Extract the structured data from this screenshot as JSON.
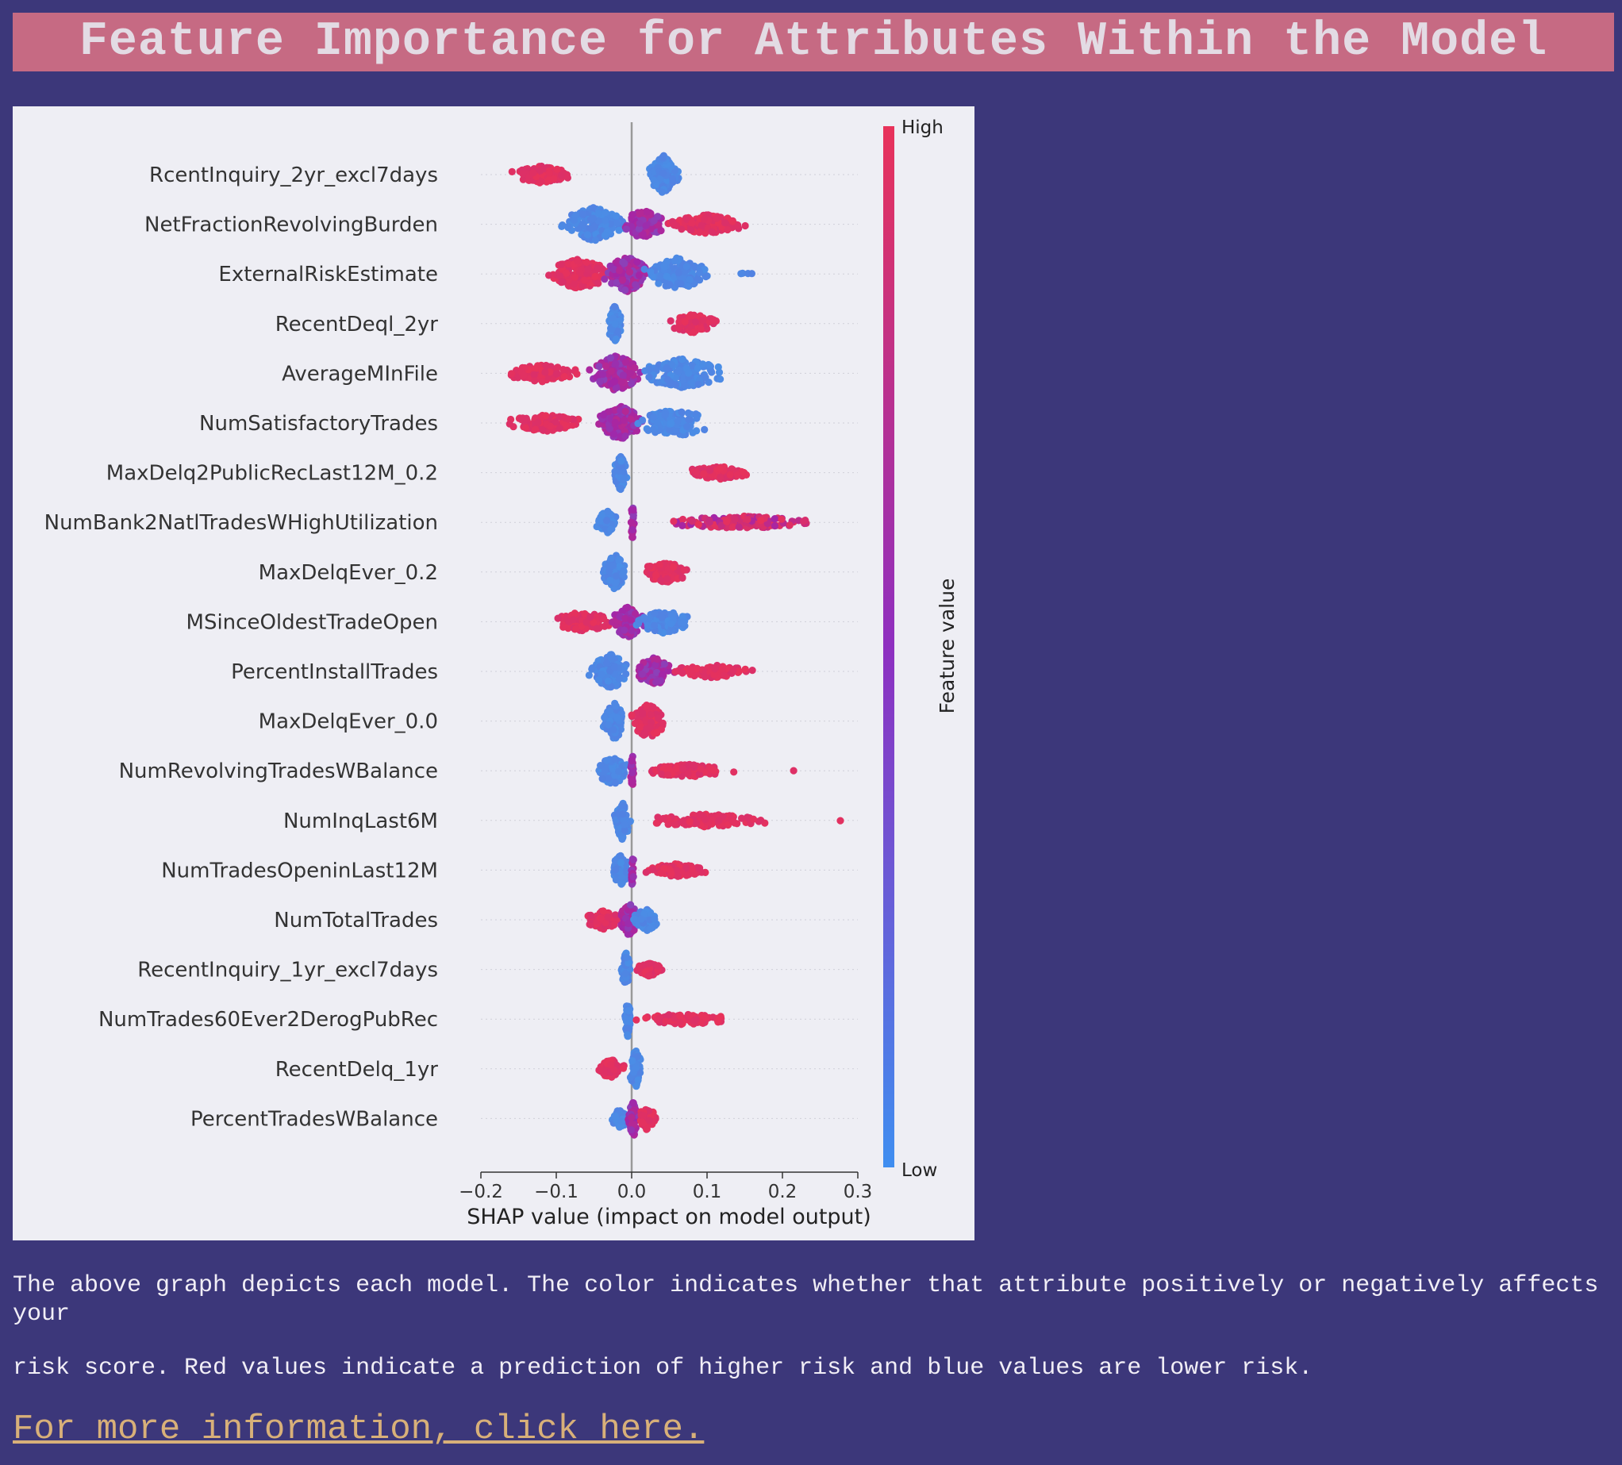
{
  "page": {
    "title": "Feature Importance for Attributes Within the Model",
    "description_line1": "The above graph depicts each model. The color indicates whether that attribute positively or negatively affects your",
    "description_line2": "risk score. Red values indicate a prediction of higher risk and blue values are lower risk.",
    "link_text": "For more information, click here."
  },
  "colors": {
    "background": "#3c377a",
    "title_bar": "#c66a83",
    "title_text": "#e3dbe4",
    "plot_background": "#eeeef4",
    "high": "#e8325a",
    "mid": "#a325a8",
    "low": "#4a8ee6",
    "link": "#d8b079"
  },
  "chart_data": {
    "type": "scatter",
    "subtype": "shap-beeswarm",
    "xlabel": "SHAP value (impact on model output)",
    "xlim": [
      -0.2,
      0.3
    ],
    "xticks": [
      -0.2,
      -0.1,
      0.0,
      0.1,
      0.2,
      0.3
    ],
    "xtick_labels": [
      "−0.2",
      "−0.1",
      "0.0",
      "0.1",
      "0.2",
      "0.3"
    ],
    "colorbar": {
      "label": "Feature value",
      "high_label": "High",
      "low_label": "Low"
    },
    "features": [
      {
        "name": "RcentInquiry_2yr_excl7days",
        "clusters": [
          {
            "lo": 0.02,
            "hi": 0.065,
            "color": "low",
            "spread": 1.0,
            "density": 140
          },
          {
            "lo": -0.165,
            "hi": -0.075,
            "color": "high",
            "spread": 0.45,
            "density": 110
          }
        ]
      },
      {
        "name": "NetFractionRevolvingBurden",
        "clusters": [
          {
            "lo": -0.1,
            "hi": 0.0,
            "color": "low",
            "spread": 0.9,
            "density": 160
          },
          {
            "lo": -0.02,
            "hi": 0.05,
            "color": "mid",
            "spread": 0.75,
            "density": 120
          },
          {
            "lo": 0.04,
            "hi": 0.16,
            "color": "high",
            "spread": 0.5,
            "density": 130
          }
        ]
      },
      {
        "name": "ExternalRiskEstimate",
        "clusters": [
          {
            "lo": -0.12,
            "hi": -0.02,
            "color": "high",
            "spread": 0.8,
            "density": 170
          },
          {
            "lo": -0.04,
            "hi": 0.03,
            "color": "mid",
            "spread": 0.95,
            "density": 150
          },
          {
            "lo": 0.01,
            "hi": 0.11,
            "color": "low",
            "spread": 0.85,
            "density": 150
          },
          {
            "lo": 0.13,
            "hi": 0.165,
            "color": "low",
            "spread": 0.05,
            "density": 4
          }
        ]
      },
      {
        "name": "RecentDeql_2yr",
        "clusters": [
          {
            "lo": -0.035,
            "hi": -0.01,
            "color": "low",
            "spread": 0.95,
            "density": 80
          },
          {
            "lo": 0.045,
            "hi": 0.12,
            "color": "high",
            "spread": 0.5,
            "density": 110
          }
        ]
      },
      {
        "name": "AverageMInFile",
        "clusters": [
          {
            "lo": -0.18,
            "hi": -0.06,
            "color": "high",
            "spread": 0.45,
            "density": 110
          },
          {
            "lo": -0.06,
            "hi": 0.02,
            "color": "mid",
            "spread": 0.95,
            "density": 170
          },
          {
            "lo": 0.0,
            "hi": 0.135,
            "color": "low",
            "spread": 0.8,
            "density": 160
          }
        ]
      },
      {
        "name": "NumSatisfactoryTrades",
        "clusters": [
          {
            "lo": -0.18,
            "hi": -0.05,
            "color": "high",
            "spread": 0.45,
            "density": 110
          },
          {
            "lo": -0.05,
            "hi": 0.02,
            "color": "mid",
            "spread": 0.9,
            "density": 150
          },
          {
            "lo": 0.0,
            "hi": 0.115,
            "color": "low",
            "spread": 0.75,
            "density": 130
          }
        ]
      },
      {
        "name": "MaxDelq2PublicRecLast12M_0.2",
        "clusters": [
          {
            "lo": -0.025,
            "hi": -0.005,
            "color": "low",
            "spread": 0.9,
            "density": 80
          },
          {
            "lo": 0.06,
            "hi": 0.17,
            "color": "high",
            "spread": 0.35,
            "density": 100
          }
        ]
      },
      {
        "name": "NumBank2NatlTradesWHighUtilization",
        "clusters": [
          {
            "lo": -0.05,
            "hi": -0.015,
            "color": "low",
            "spread": 0.6,
            "density": 60
          },
          {
            "lo": -0.002,
            "hi": 0.004,
            "color": "mid",
            "spread": 0.95,
            "density": 20
          },
          {
            "lo": 0.02,
            "hi": 0.26,
            "color": "mid-high",
            "spread": 0.35,
            "density": 140
          }
        ]
      },
      {
        "name": "MaxDelqEver_0.2",
        "clusters": [
          {
            "lo": -0.04,
            "hi": -0.005,
            "color": "low",
            "spread": 0.95,
            "density": 120
          },
          {
            "lo": 0.005,
            "hi": 0.085,
            "color": "high",
            "spread": 0.55,
            "density": 110
          }
        ]
      },
      {
        "name": "MSinceOldestTradeOpen",
        "clusters": [
          {
            "lo": -0.11,
            "hi": -0.02,
            "color": "high",
            "spread": 0.55,
            "density": 110
          },
          {
            "lo": -0.03,
            "hi": 0.02,
            "color": "mid",
            "spread": 0.85,
            "density": 110
          },
          {
            "lo": 0.0,
            "hi": 0.085,
            "color": "low",
            "spread": 0.6,
            "density": 110
          }
        ]
      },
      {
        "name": "PercentInstallTrades",
        "clusters": [
          {
            "lo": -0.06,
            "hi": 0.005,
            "color": "low",
            "spread": 0.9,
            "density": 140
          },
          {
            "lo": 0.0,
            "hi": 0.06,
            "color": "mid",
            "spread": 0.75,
            "density": 110
          },
          {
            "lo": 0.04,
            "hi": 0.17,
            "color": "high",
            "spread": 0.35,
            "density": 100
          }
        ]
      },
      {
        "name": "MaxDelqEver_0.0",
        "clusters": [
          {
            "lo": -0.04,
            "hi": -0.005,
            "color": "low",
            "spread": 1.0,
            "density": 110
          },
          {
            "lo": -0.005,
            "hi": 0.05,
            "color": "high",
            "spread": 0.9,
            "density": 110
          }
        ]
      },
      {
        "name": "NumRevolvingTradesWBalance",
        "clusters": [
          {
            "lo": -0.05,
            "hi": 0.0,
            "color": "low",
            "spread": 0.75,
            "density": 110
          },
          {
            "lo": -0.002,
            "hi": 0.004,
            "color": "mid",
            "spread": 0.9,
            "density": 20
          },
          {
            "lo": 0.01,
            "hi": 0.14,
            "color": "high",
            "spread": 0.35,
            "density": 110
          },
          {
            "lo": 0.21,
            "hi": 0.22,
            "color": "high",
            "spread": 0.05,
            "density": 1
          }
        ]
      },
      {
        "name": "NumInqLast6M",
        "clusters": [
          {
            "lo": -0.025,
            "hi": 0.0,
            "color": "low",
            "spread": 1.0,
            "density": 90
          },
          {
            "lo": 0.005,
            "hi": 0.195,
            "color": "high",
            "spread": 0.35,
            "density": 120
          },
          {
            "lo": 0.275,
            "hi": 0.28,
            "color": "high",
            "spread": 0.05,
            "density": 1
          }
        ]
      },
      {
        "name": "NumTradesOpeninLast12M",
        "clusters": [
          {
            "lo": -0.03,
            "hi": 0.0,
            "color": "low",
            "spread": 0.8,
            "density": 80
          },
          {
            "lo": -0.002,
            "hi": 0.004,
            "color": "mid",
            "spread": 0.9,
            "density": 20
          },
          {
            "lo": 0.005,
            "hi": 0.115,
            "color": "high",
            "spread": 0.35,
            "density": 100
          }
        ]
      },
      {
        "name": "NumTotalTrades",
        "clusters": [
          {
            "lo": -0.065,
            "hi": -0.01,
            "color": "high",
            "spread": 0.5,
            "density": 80
          },
          {
            "lo": -0.02,
            "hi": 0.015,
            "color": "mid",
            "spread": 0.85,
            "density": 90
          },
          {
            "lo": 0.0,
            "hi": 0.04,
            "color": "low",
            "spread": 0.6,
            "density": 60
          }
        ]
      },
      {
        "name": "RecentInquiry_1yr_excl7days",
        "clusters": [
          {
            "lo": -0.015,
            "hi": 0.0,
            "color": "low",
            "spread": 0.9,
            "density": 60
          },
          {
            "lo": 0.002,
            "hi": 0.045,
            "color": "high",
            "spread": 0.35,
            "density": 70
          }
        ]
      },
      {
        "name": "NumTrades60Ever2DerogPubRec",
        "clusters": [
          {
            "lo": -0.01,
            "hi": 0.0,
            "color": "low",
            "spread": 0.95,
            "density": 60
          },
          {
            "lo": 0.002,
            "hi": 0.14,
            "color": "high",
            "spread": 0.3,
            "density": 90
          }
        ]
      },
      {
        "name": "RecentDelq_1yr",
        "clusters": [
          {
            "lo": -0.05,
            "hi": -0.005,
            "color": "high",
            "spread": 0.5,
            "density": 70
          },
          {
            "lo": -0.005,
            "hi": 0.015,
            "color": "low",
            "spread": 1.0,
            "density": 90
          }
        ]
      },
      {
        "name": "PercentTradesWBalance",
        "clusters": [
          {
            "lo": -0.03,
            "hi": 0.0,
            "color": "low",
            "spread": 0.5,
            "density": 60
          },
          {
            "lo": -0.005,
            "hi": 0.01,
            "color": "mid",
            "spread": 0.95,
            "density": 60
          },
          {
            "lo": 0.005,
            "hi": 0.035,
            "color": "high",
            "spread": 0.6,
            "density": 60
          }
        ]
      }
    ]
  }
}
